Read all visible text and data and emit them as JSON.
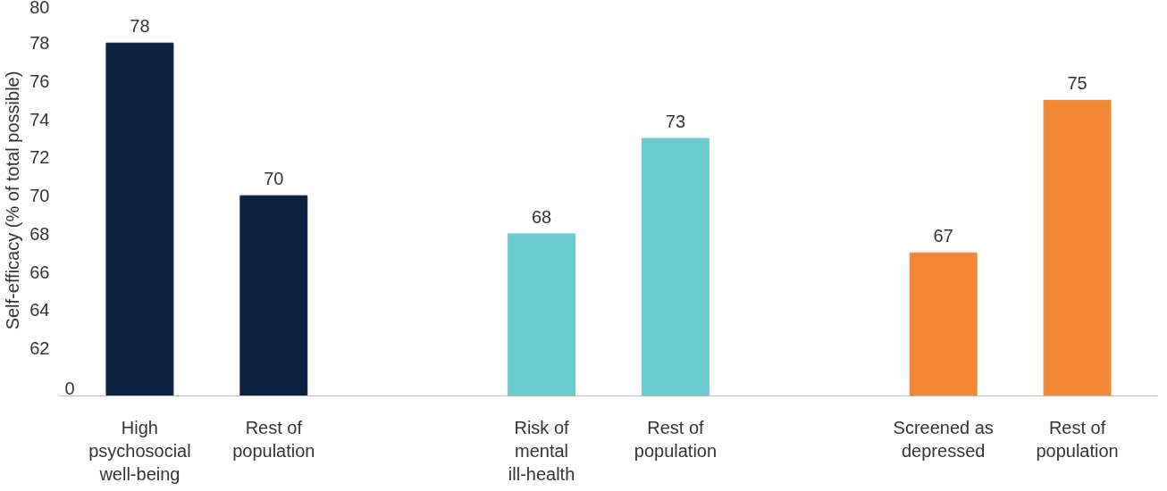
{
  "chart_data": {
    "type": "bar",
    "ylabel": "Self-efficacy (% of total possible)",
    "categories": [
      "High psychosocial well-being",
      "Rest of population",
      null,
      "Risk of mental ill-health",
      "Rest of population",
      null,
      "Screened as depressed",
      "Rest of population"
    ],
    "values": [
      78,
      70,
      null,
      68,
      73,
      null,
      67,
      75
    ],
    "colors": [
      "#0b2341",
      "#0b2341",
      null,
      "#6bcbd0",
      "#6bcbd0",
      null,
      "#f28633",
      "#f28633"
    ],
    "ylim": [
      59.5,
      80
    ],
    "yticks": [
      62,
      64,
      66,
      68,
      70,
      72,
      74,
      76,
      78,
      80
    ],
    "annotations": [
      "0"
    ],
    "data_labels": true,
    "grid": false
  }
}
